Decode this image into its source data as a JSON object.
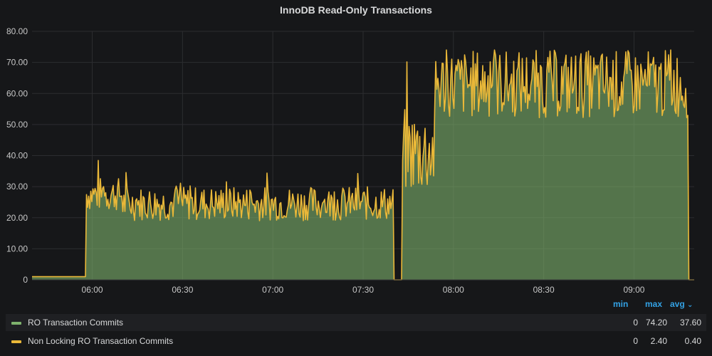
{
  "panel": {
    "title": "InnoDB Read-Only Transactions"
  },
  "legend": {
    "headers": {
      "min": "min",
      "max": "max",
      "avg": "avg",
      "sort_icon": "chevron-down-icon"
    },
    "rows": [
      {
        "name": "RO Transaction Commits",
        "color": "#7eb26d",
        "min": "0",
        "max": "74.20",
        "avg": "37.60"
      },
      {
        "name": "Non Locking RO Transaction Commits",
        "color": "#eab839",
        "min": "0",
        "max": "2.40",
        "avg": "0.40"
      }
    ]
  },
  "chart_data": {
    "type": "area",
    "title": "InnoDB Read-Only Transactions",
    "x_time_range": [
      "05:40",
      "09:20"
    ],
    "ylim": [
      0,
      80
    ],
    "y_ticks": [
      "0",
      "10.00",
      "20.00",
      "30.00",
      "40.00",
      "50.00",
      "60.00",
      "70.00",
      "80.00"
    ],
    "x_ticks": [
      "06:00",
      "06:30",
      "07:00",
      "07:30",
      "08:00",
      "08:30",
      "09:00"
    ],
    "grid": true,
    "legend_position": "bottom",
    "segments": [
      {
        "from": "05:40",
        "to": "05:58",
        "level": 1
      },
      {
        "from": "05:58",
        "to": "06:10",
        "level": 27
      },
      {
        "from": "06:10",
        "to": "07:40",
        "level": 24
      },
      {
        "from": "07:40",
        "to": "07:43",
        "level": 0
      },
      {
        "from": "07:43",
        "to": "07:54",
        "level": 40
      },
      {
        "from": "07:54",
        "to": "09:18",
        "level": 62
      },
      {
        "from": "09:18",
        "to": "09:20",
        "level": 0
      }
    ],
    "series": [
      {
        "name": "RO Transaction Commits",
        "color": "#7eb26d",
        "fill": true
      },
      {
        "name": "Non Locking RO Transaction Commits",
        "color": "#eab839",
        "fill": false
      }
    ]
  }
}
